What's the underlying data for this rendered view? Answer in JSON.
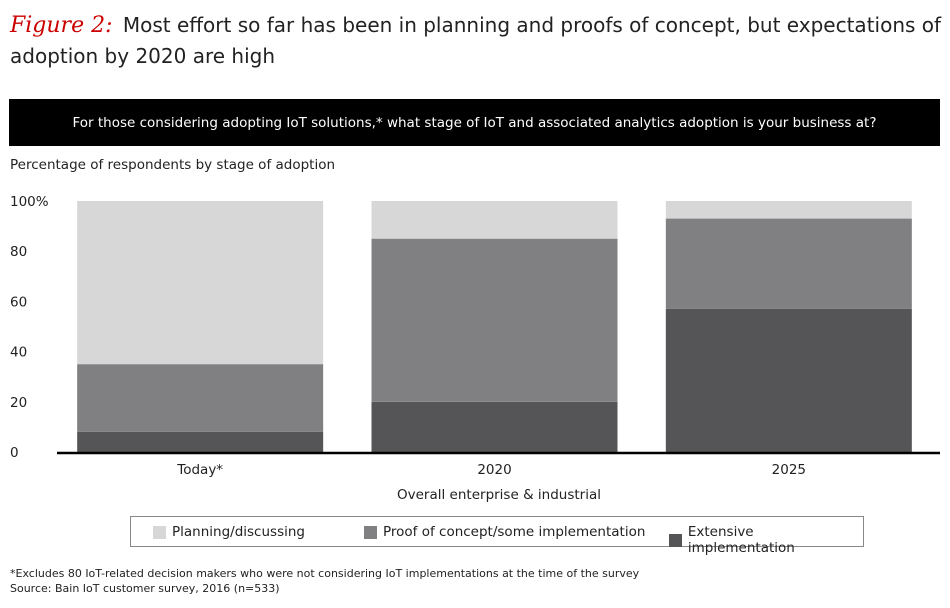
{
  "figure": {
    "label": "Figure 2:",
    "title": "Most effort so far has been in planning and proofs of concept, but expectations of adoption by 2020 are high"
  },
  "question": "For those considering adopting IoT solutions,* what stage of IoT and associated analytics adoption is your business at?",
  "subtitle": "Percentage of respondents by stage of adoption",
  "chart_data": {
    "type": "bar",
    "stacked": true,
    "categories": [
      "Today*",
      "2020",
      "2025"
    ],
    "xlabel": "Overall enterprise & industrial",
    "ylabel": "Percentage of respondents by stage of adoption",
    "ylim": [
      0,
      100
    ],
    "yticks": [
      "0",
      "20",
      "40",
      "60",
      "80",
      "100%"
    ],
    "grid": false,
    "series": [
      {
        "name": "Extensive implementation",
        "values": [
          8,
          20,
          57
        ],
        "color": "#555557"
      },
      {
        "name": "Proof of concept/some implementation",
        "values": [
          27,
          65,
          36
        ],
        "color": "#808083"
      },
      {
        "name": "Planning/discussing",
        "values": [
          65,
          15,
          7
        ],
        "color": "#d7d7d7"
      }
    ]
  },
  "legend": [
    {
      "label": "Planning/discussing",
      "color": "#d7d7d7"
    },
    {
      "label": "Proof of concept/some implementation",
      "color": "#808083"
    },
    {
      "label": "Extensive implementation",
      "color": "#555557"
    }
  ],
  "footnotes": {
    "note": "*Excludes 80 IoT-related decision makers who were not considering IoT implementations at the time of the survey",
    "source": "Source: Bain IoT customer survey, 2016 (n=533)"
  }
}
